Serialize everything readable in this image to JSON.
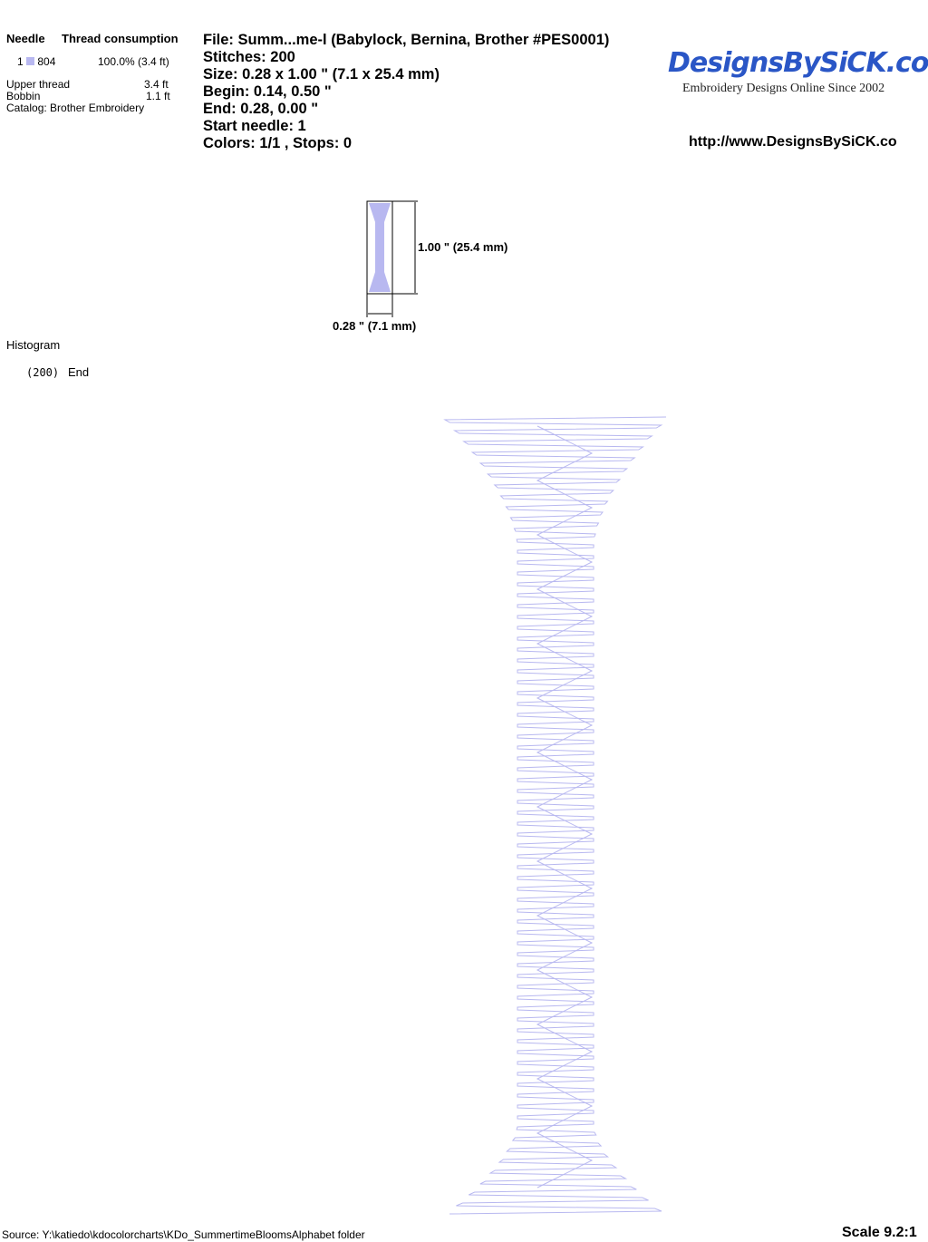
{
  "thread_table": {
    "header_needle": "Needle",
    "header_consumption": "Thread consumption",
    "rows": [
      {
        "needle": "1",
        "color": "#b8b8f0",
        "code": "804",
        "consumption": "100.0% (3.4 ft)"
      }
    ],
    "upper_thread_label": "Upper thread",
    "upper_thread_value": "3.4 ft",
    "bobbin_label": "Bobbin",
    "bobbin_value": "1.1 ft",
    "catalog": "Catalog: Brother Embroidery"
  },
  "design_info": {
    "file": "File: Summ...me-l  (Babylock, Bernina, Brother #PES0001)",
    "stitches": "Stitches: 200",
    "size": "Size: 0.28 x 1.00 \" (7.1 x 25.4 mm)",
    "begin": "Begin: 0.14, 0.50 \"",
    "end": "End: 0.28, 0.00 \"",
    "start_needle": "Start needle: 1",
    "colors": "Colors: 1/1 , Stops: 0"
  },
  "brand": {
    "logo": "DesignsBySiCK.com",
    "tagline": "Embroidery Designs Online Since 2002",
    "url": "http://www.DesignsBySiCK.co"
  },
  "preview": {
    "height_label": "1.00 \" (25.4 mm)",
    "width_label": "0.28 \" (7.1 mm)"
  },
  "histogram": {
    "title": "Histogram",
    "count": "(200)",
    "label": "End"
  },
  "footer": {
    "source": "Source: Y:\\katiedo\\kdocolorcharts\\KDo_SummertimeBloomsAlphabet folder",
    "scale": "Scale 9.2:1"
  },
  "colors": {
    "thread": "#b8b8f0",
    "logo": "#2a56c6"
  }
}
